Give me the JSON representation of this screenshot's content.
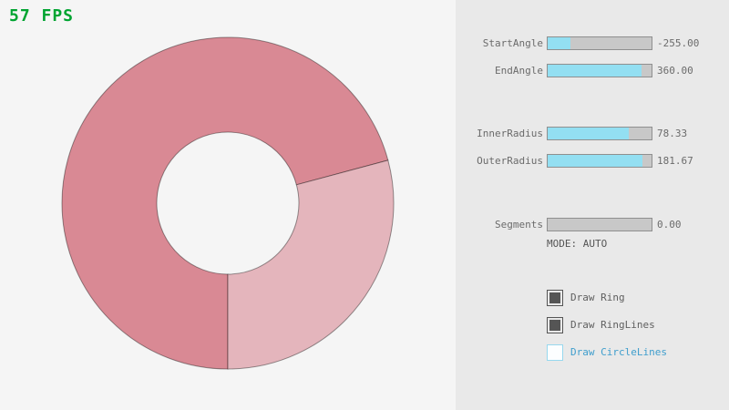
{
  "fps": {
    "text": "57 FPS",
    "color": "#00a431"
  },
  "colors": {
    "left_background": "#f5f5f5",
    "panel_background": "#e9e9e9",
    "slider_fill_blue": "#93dff2",
    "slider_track_gray": "#c8c8c8",
    "checkbox_checked_gray": "#555555",
    "checkbox_unchecked_blue": "#97d8ee"
  },
  "ring": {
    "color_single_pass": "#e4b5bc",
    "color_double_pass": "#d98994",
    "outline": "rgba(0,0,0,0.4)"
  },
  "sliders": [
    {
      "id": "start-angle",
      "label": "StartAngle",
      "value": "-255.00",
      "fill_pct": 21.7
    },
    {
      "id": "end-angle",
      "label": "EndAngle",
      "value": "360.00",
      "fill_pct": 90.0
    },
    {
      "id": "inner-radius",
      "label": "InnerRadius",
      "value": "78.33",
      "fill_pct": 78.3
    },
    {
      "id": "outer-radius",
      "label": "OuterRadius",
      "value": "181.67",
      "fill_pct": 90.8
    },
    {
      "id": "segments",
      "label": "Segments",
      "value": "0.00",
      "fill_pct": 0
    }
  ],
  "mode_text": "MODE: AUTO",
  "checkboxes": [
    {
      "id": "draw-ring",
      "label": "Draw Ring",
      "checked": true
    },
    {
      "id": "draw-ringlines",
      "label": "Draw RingLines",
      "checked": true
    },
    {
      "id": "draw-circlelines",
      "label": "Draw CircleLines",
      "checked": false
    }
  ]
}
